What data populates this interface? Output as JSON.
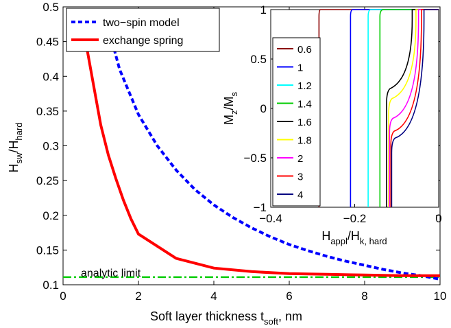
{
  "chart_data": [
    {
      "type": "line",
      "xlabel": "Soft layer thickness t",
      "xlabel_sub": "soft",
      "xlabel_suffix": ", nm",
      "ylabel": "H",
      "ylabel_sub1": "sw",
      "ylabel_mid": "/H",
      "ylabel_sub2": "hard",
      "xlim": [
        0,
        10
      ],
      "ylim": [
        0.1,
        0.5
      ],
      "xticks": [
        "0",
        "2",
        "4",
        "6",
        "8",
        "10"
      ],
      "yticks": [
        "0.1",
        "0.15",
        "0.2",
        "0.25",
        "0.3",
        "0.35",
        "0.4",
        "0.45",
        "0.5"
      ],
      "legend_position": "top-left",
      "series": [
        {
          "name": "two−spin model",
          "color": "#0000ff",
          "style": "dashed",
          "x": [
            1.3,
            1.5,
            2,
            2.5,
            3,
            3.5,
            4,
            4.5,
            5,
            5.5,
            6,
            6.5,
            7,
            7.5,
            8,
            8.5,
            9,
            9.5,
            10
          ],
          "y": [
            0.45,
            0.41,
            0.345,
            0.3,
            0.265,
            0.237,
            0.215,
            0.197,
            0.182,
            0.169,
            0.158,
            0.149,
            0.141,
            0.134,
            0.128,
            0.122,
            0.117,
            0.113,
            0.108
          ]
        },
        {
          "name": "exchange spring",
          "color": "#ff0000",
          "style": "solid",
          "x": [
            0.6,
            0.8,
            1.0,
            1.2,
            1.4,
            1.6,
            1.8,
            2,
            3,
            4,
            5,
            6,
            7,
            8,
            9,
            10
          ],
          "y": [
            0.45,
            0.39,
            0.33,
            0.287,
            0.253,
            0.222,
            0.195,
            0.173,
            0.138,
            0.124,
            0.119,
            0.116,
            0.115,
            0.114,
            0.113,
            0.113
          ]
        },
        {
          "name": "analytic limit",
          "color": "#00cc00",
          "style": "dashdot",
          "x": [
            0,
            10
          ],
          "y": [
            0.111,
            0.111
          ]
        }
      ],
      "annotation": "analytic limit"
    },
    {
      "type": "line",
      "xlabel": "H",
      "xlabel_sub1": "appl",
      "xlabel_mid": "/H",
      "xlabel_sub2": "k, hard",
      "ylabel": "M",
      "ylabel_sub1": "z",
      "ylabel_mid": "/M",
      "ylabel_sub2": "s",
      "xlim": [
        -0.4,
        0
      ],
      "ylim": [
        -1,
        1
      ],
      "xticks": [
        "−0.4",
        "−0.2",
        "0"
      ],
      "yticks": [
        "−1",
        "−0.5",
        "0",
        "0.5",
        "1"
      ],
      "legend_position": "left",
      "series": [
        {
          "name": "0.6",
          "color": "#8b0000",
          "h_sw": -0.285,
          "foot": null
        },
        {
          "name": "1",
          "color": "#0000ff",
          "h_sw": -0.21,
          "foot": null
        },
        {
          "name": "1.2",
          "color": "#00ffff",
          "h_sw": -0.168,
          "foot": null
        },
        {
          "name": "1.4",
          "color": "#00cc00",
          "h_sw": -0.14,
          "foot": null
        },
        {
          "name": "1.6",
          "color": "#000000",
          "h_sw": -0.124,
          "foot": 0.05
        },
        {
          "name": "1.8",
          "color": "#ffff00",
          "h_sw": -0.119,
          "foot": -0.05
        },
        {
          "name": "2",
          "color": "#ff00ff",
          "h_sw": -0.117,
          "foot": -0.25
        },
        {
          "name": "3",
          "color": "#ff0000",
          "h_sw": -0.114,
          "foot": -0.38
        },
        {
          "name": "4",
          "color": "#000080",
          "h_sw": -0.112,
          "foot": -0.45
        }
      ]
    }
  ]
}
